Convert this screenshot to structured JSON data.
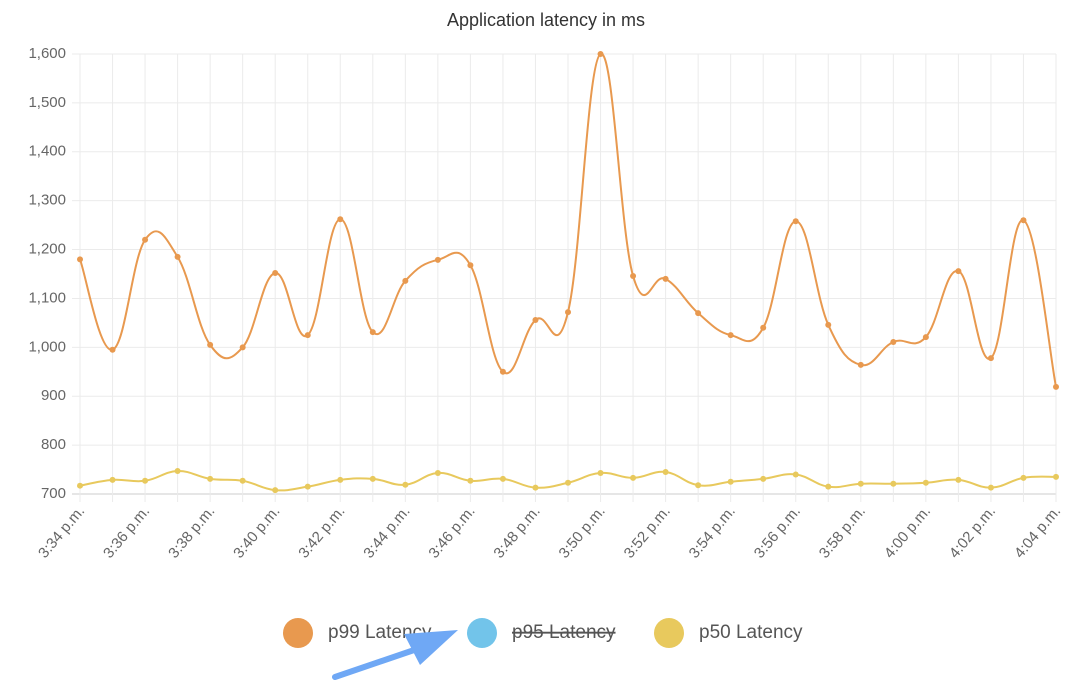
{
  "chart_data": {
    "type": "line",
    "title": "Application latency in ms",
    "categories": [
      "3:34 p.m.",
      null,
      "3:36 p.m.",
      null,
      "3:38 p.m.",
      null,
      "3:40 p.m.",
      null,
      "3:42 p.m.",
      null,
      "3:44 p.m.",
      null,
      "3:46 p.m.",
      null,
      "3:48 p.m.",
      null,
      "3:50 p.m.",
      null,
      "3:52 p.m.",
      null,
      "3:54 p.m.",
      null,
      "3:56 p.m.",
      null,
      "3:58 p.m.",
      null,
      "4:00 p.m.",
      null,
      "4:02 p.m.",
      null,
      "4:04 p.m."
    ],
    "series": [
      {
        "name": "p99 Latency",
        "color": "#e8994f",
        "values": [
          1180,
          995,
          1220,
          1185,
          1005,
          1000,
          1152,
          1025,
          1262,
          1031,
          1136,
          1179,
          1168,
          950,
          1056,
          1072,
          1600,
          1146,
          1140,
          1070,
          1025,
          1040,
          1258,
          1046,
          964,
          1011,
          1021,
          1156,
          978,
          1260,
          919
        ]
      },
      {
        "name": "p95 Latency",
        "color": "#72c4ea",
        "hidden": true,
        "values": [
          null,
          null,
          null,
          null,
          null,
          null,
          null,
          null,
          null,
          null,
          null,
          null,
          null,
          null,
          null,
          null,
          null,
          null,
          null,
          null,
          null,
          null,
          null,
          null,
          null,
          null,
          null,
          null,
          null,
          null,
          null
        ]
      },
      {
        "name": "p50 Latency",
        "color": "#e8c95d",
        "values": [
          717,
          729,
          727,
          747,
          731,
          727,
          708,
          715,
          729,
          731,
          719,
          743,
          727,
          731,
          713,
          723,
          743,
          733,
          745,
          718,
          725,
          731,
          740,
          715,
          721,
          721,
          723,
          729,
          713,
          733,
          735
        ]
      }
    ],
    "ylim": [
      700,
      1600
    ],
    "yticks": [
      700,
      800,
      900,
      {
        "value": 1000,
        "label": "1,000"
      },
      {
        "value": 1100,
        "label": "1,100"
      },
      {
        "value": 1200,
        "label": "1,200"
      },
      {
        "value": 1300,
        "label": "1,300"
      },
      {
        "value": 1400,
        "label": "1,400"
      },
      {
        "value": 1500,
        "label": "1,500"
      },
      {
        "value": 1600,
        "label": "1,600"
      }
    ],
    "grid": true
  }
}
